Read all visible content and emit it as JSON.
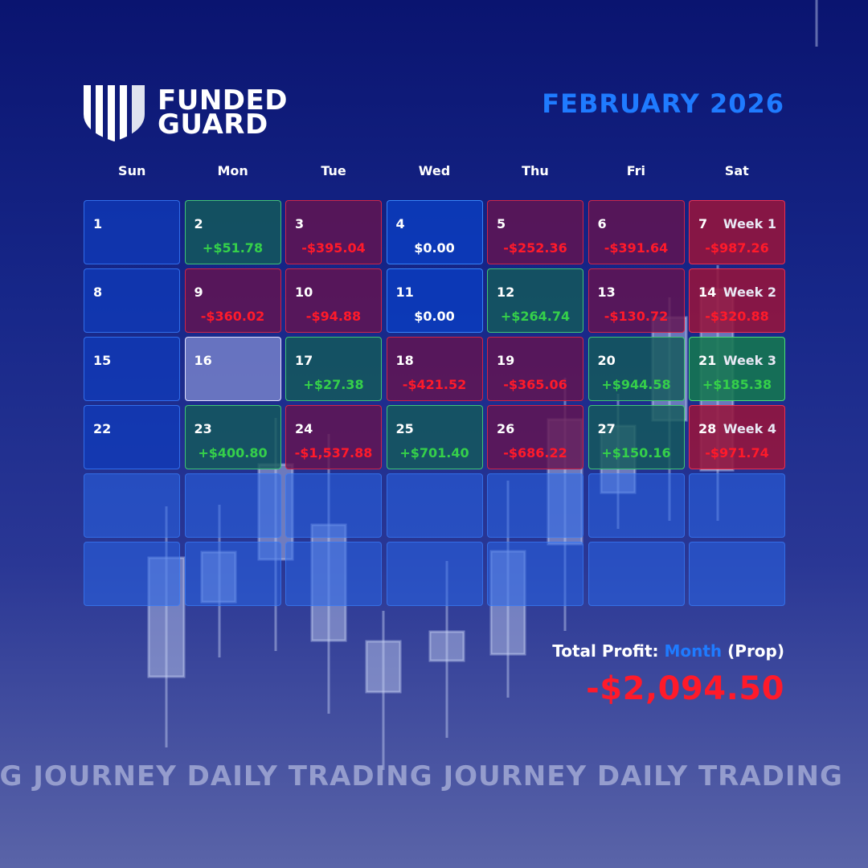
{
  "brand": {
    "line1": "FUNDED",
    "line2": "GUARD"
  },
  "title": "FEBRUARY 2026",
  "weekdays": [
    "Sun",
    "Mon",
    "Tue",
    "Wed",
    "Thu",
    "Fri",
    "Sat"
  ],
  "cells": [
    {
      "day": "1",
      "amount": "",
      "status": "empty",
      "week": ""
    },
    {
      "day": "2",
      "amount": "+$51.78",
      "status": "profit",
      "week": ""
    },
    {
      "day": "3",
      "amount": "-$395.04",
      "status": "loss",
      "week": ""
    },
    {
      "day": "4",
      "amount": "$0.00",
      "status": "zero",
      "week": ""
    },
    {
      "day": "5",
      "amount": "-$252.36",
      "status": "loss",
      "week": ""
    },
    {
      "day": "6",
      "amount": "-$391.64",
      "status": "loss",
      "week": ""
    },
    {
      "day": "7",
      "amount": "-$987.26",
      "status": "week-loss",
      "week": "Week 1"
    },
    {
      "day": "8",
      "amount": "",
      "status": "empty",
      "week": ""
    },
    {
      "day": "9",
      "amount": "-$360.02",
      "status": "loss",
      "week": ""
    },
    {
      "day": "10",
      "amount": "-$94.88",
      "status": "loss",
      "week": ""
    },
    {
      "day": "11",
      "amount": "$0.00",
      "status": "zero",
      "week": ""
    },
    {
      "day": "12",
      "amount": "+$264.74",
      "status": "profit",
      "week": ""
    },
    {
      "day": "13",
      "amount": "-$130.72",
      "status": "loss",
      "week": ""
    },
    {
      "day": "14",
      "amount": "-$320.88",
      "status": "week-loss",
      "week": "Week 2"
    },
    {
      "day": "15",
      "amount": "",
      "status": "empty",
      "week": ""
    },
    {
      "day": "16",
      "amount": "",
      "status": "today",
      "week": ""
    },
    {
      "day": "17",
      "amount": "+$27.38",
      "status": "profit",
      "week": ""
    },
    {
      "day": "18",
      "amount": "-$421.52",
      "status": "loss",
      "week": ""
    },
    {
      "day": "19",
      "amount": "-$365.06",
      "status": "loss",
      "week": ""
    },
    {
      "day": "20",
      "amount": "+$944.58",
      "status": "profit",
      "week": ""
    },
    {
      "day": "21",
      "amount": "+$185.38",
      "status": "week-profit",
      "week": "Week 3"
    },
    {
      "day": "22",
      "amount": "",
      "status": "empty",
      "week": ""
    },
    {
      "day": "23",
      "amount": "+$400.80",
      "status": "profit",
      "week": ""
    },
    {
      "day": "24",
      "amount": "-$1,537.88",
      "status": "loss",
      "week": ""
    },
    {
      "day": "25",
      "amount": "+$701.40",
      "status": "profit",
      "week": ""
    },
    {
      "day": "26",
      "amount": "-$686.22",
      "status": "loss",
      "week": ""
    },
    {
      "day": "27",
      "amount": "+$150.16",
      "status": "profit",
      "week": ""
    },
    {
      "day": "28",
      "amount": "-$971.74",
      "status": "week-loss",
      "week": "Week 4"
    },
    {
      "day": "",
      "amount": "",
      "status": "blank",
      "week": ""
    },
    {
      "day": "",
      "amount": "",
      "status": "blank",
      "week": ""
    },
    {
      "day": "",
      "amount": "",
      "status": "blank",
      "week": ""
    },
    {
      "day": "",
      "amount": "",
      "status": "blank",
      "week": ""
    },
    {
      "day": "",
      "amount": "",
      "status": "blank",
      "week": ""
    },
    {
      "day": "",
      "amount": "",
      "status": "blank",
      "week": ""
    },
    {
      "day": "",
      "amount": "",
      "status": "blank",
      "week": ""
    },
    {
      "day": "",
      "amount": "",
      "status": "blank",
      "week": ""
    },
    {
      "day": "",
      "amount": "",
      "status": "blank",
      "week": ""
    },
    {
      "day": "",
      "amount": "",
      "status": "blank",
      "week": ""
    },
    {
      "day": "",
      "amount": "",
      "status": "blank",
      "week": ""
    },
    {
      "day": "",
      "amount": "",
      "status": "blank",
      "week": ""
    },
    {
      "day": "",
      "amount": "",
      "status": "blank",
      "week": ""
    },
    {
      "day": "",
      "amount": "",
      "status": "blank",
      "week": ""
    }
  ],
  "total": {
    "label_prefix": "Total Profit:",
    "label_highlight": "Month",
    "label_suffix": "(Prop)",
    "value": "-$2,094.50"
  },
  "ticker": "NG JOURNEY DAILY TRADING JOURNEY DAILY TRADING",
  "colors": {
    "accent": "#1f7bff",
    "profit": "#35d04a",
    "loss": "#ff1a2a"
  }
}
